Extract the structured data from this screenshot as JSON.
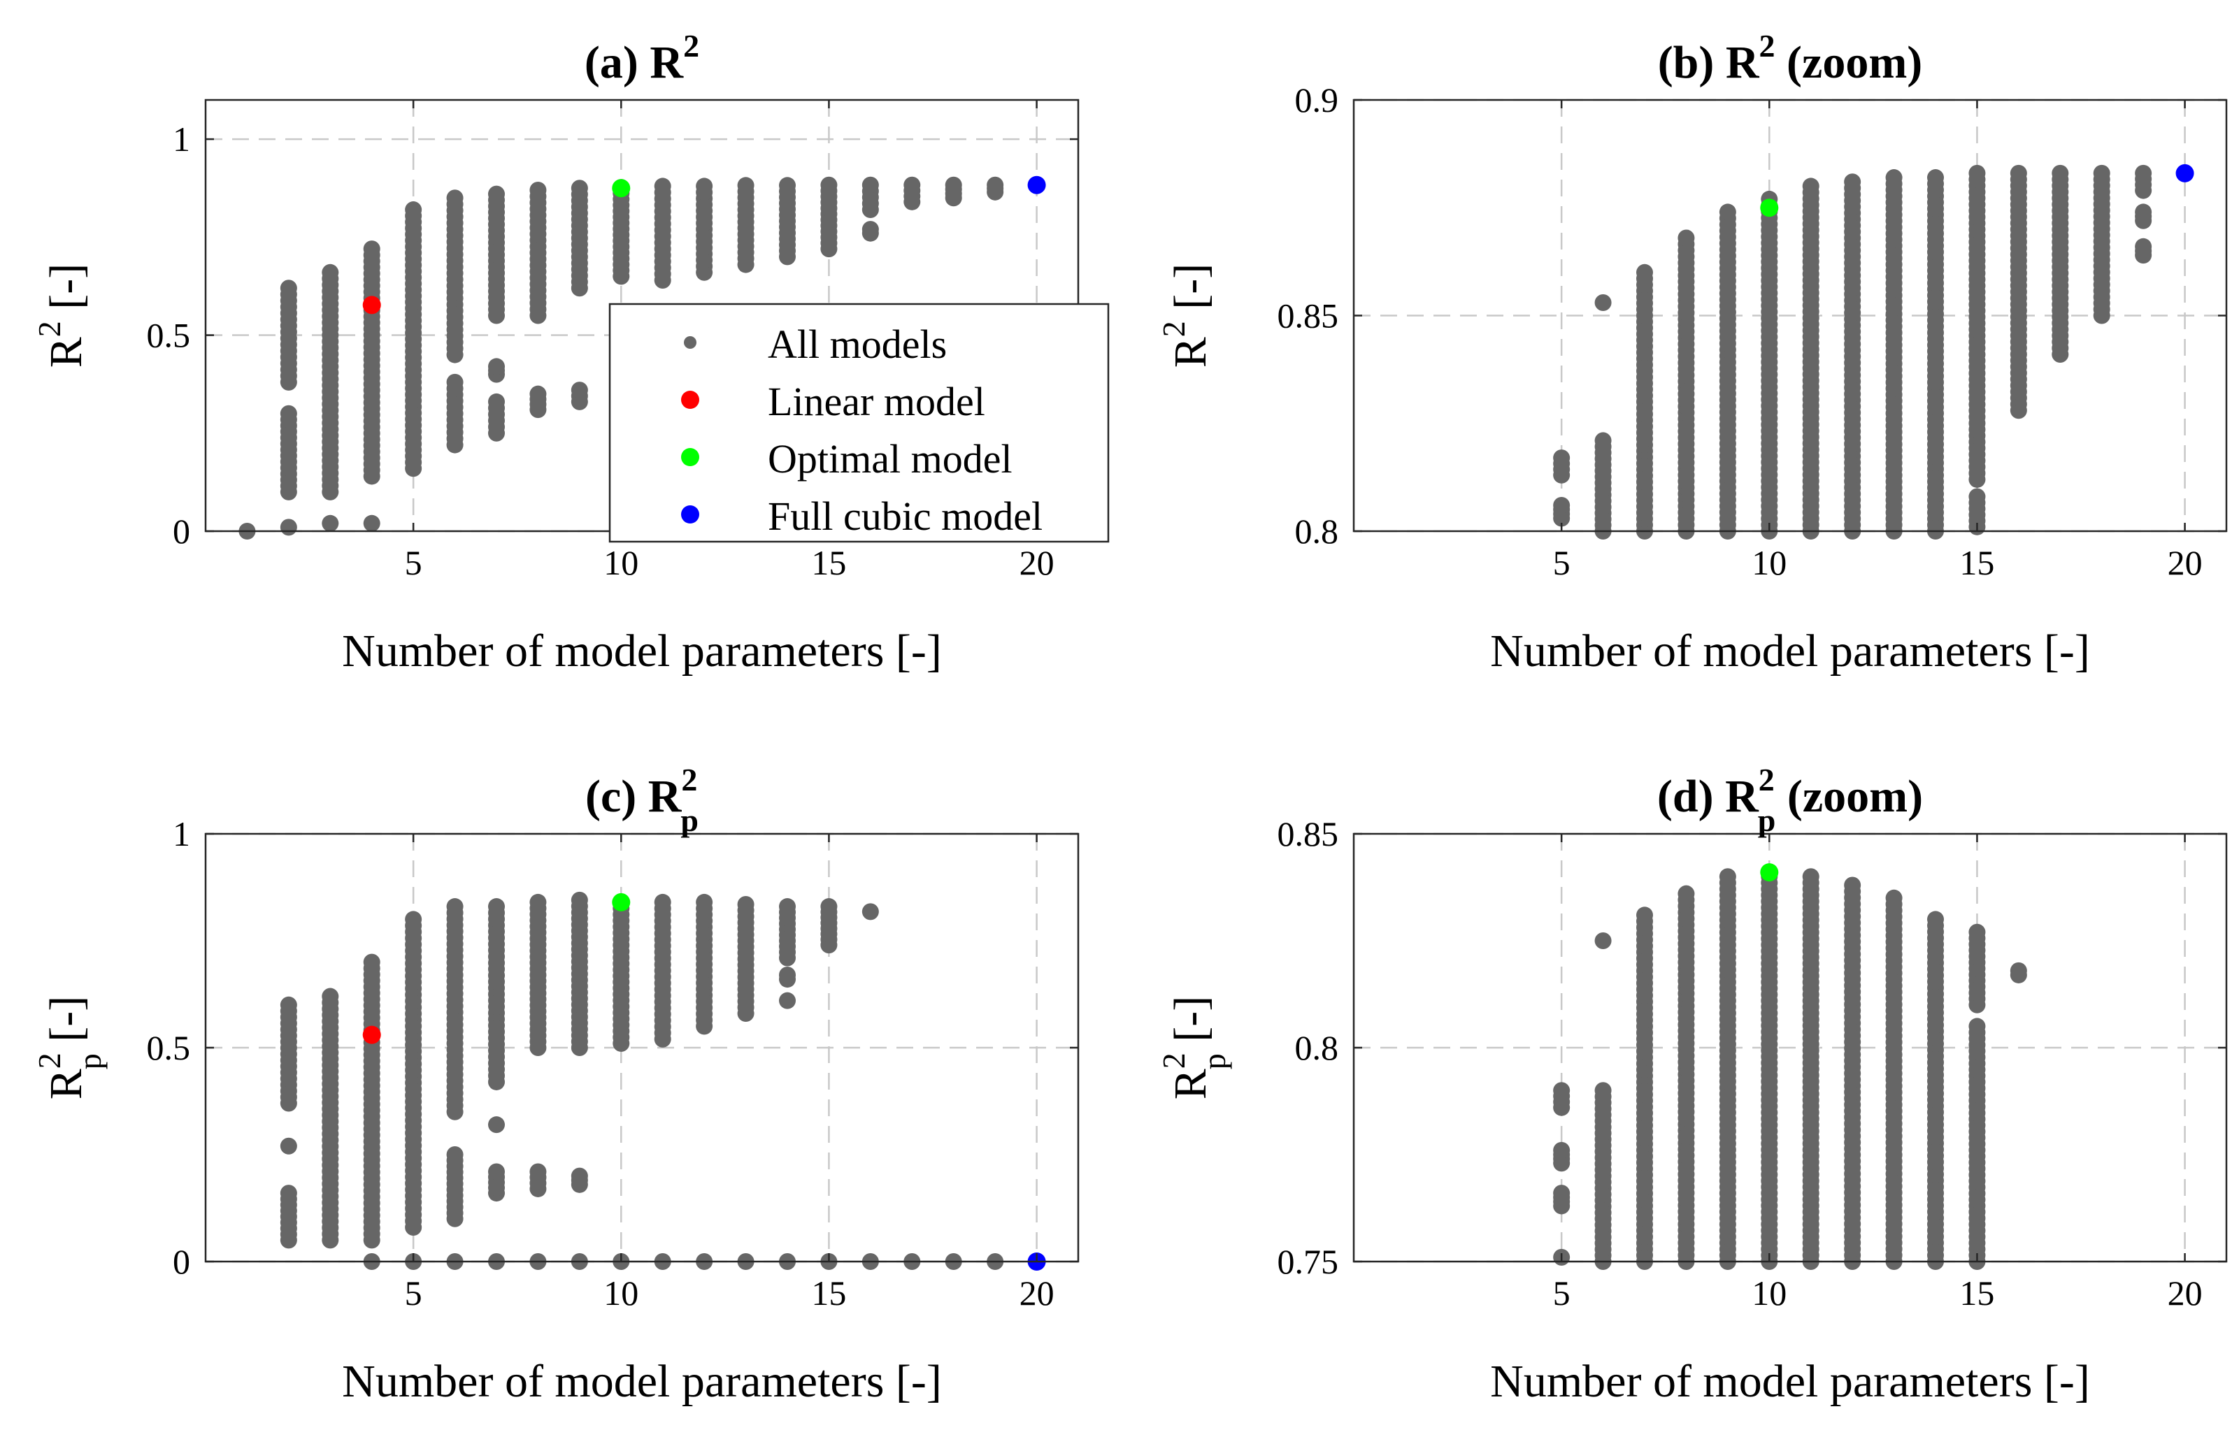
{
  "colors": {
    "all_models": "#666666",
    "linear_model": "#ff0000",
    "optimal_model": "#00ff00",
    "full_cubic_model": "#0000ff",
    "grid": "#c8c8c8"
  },
  "legend": {
    "entries": [
      {
        "label": "All models",
        "color": "#666666"
      },
      {
        "label": "Linear model",
        "color": "#ff0000"
      },
      {
        "label": "Optimal model",
        "color": "#00ff00"
      },
      {
        "label": "Full cubic model",
        "color": "#0000ff"
      }
    ],
    "placement": "inside panel (a), lower-right"
  },
  "chart_data": [
    {
      "id": "a",
      "type": "scatter",
      "title_prefix": "(a) ",
      "title_main": "R",
      "title_sup": "2",
      "title_sub": "",
      "title_suffix": "",
      "ylabel_main": "R",
      "ylabel_sup": "2",
      "ylabel_sub": "",
      "ylabel_suffix": " [-]",
      "xlabel": "Number of model parameters [-]",
      "xlim": [
        0,
        21
      ],
      "ylim": [
        0,
        1.1
      ],
      "xticks": [
        5,
        10,
        15,
        20
      ],
      "yticks": [
        0,
        0.5,
        1
      ],
      "ytick_labels": [
        "0",
        "0.5",
        "1"
      ],
      "grid": true,
      "all_models": [
        {
          "x": 1,
          "ranges": [
            [
              0.0,
              0.0
            ]
          ]
        },
        {
          "x": 2,
          "ranges": [
            [
              0.01,
              0.01
            ],
            [
              0.1,
              0.3
            ],
            [
              0.38,
              0.62
            ]
          ]
        },
        {
          "x": 3,
          "ranges": [
            [
              0.02,
              0.02
            ],
            [
              0.1,
              0.66
            ]
          ]
        },
        {
          "x": 4,
          "ranges": [
            [
              0.02,
              0.02
            ],
            [
              0.14,
              0.72
            ]
          ]
        },
        {
          "x": 5,
          "ranges": [
            [
              0.16,
              0.82
            ]
          ]
        },
        {
          "x": 6,
          "ranges": [
            [
              0.22,
              0.38
            ],
            [
              0.45,
              0.85
            ]
          ]
        },
        {
          "x": 7,
          "ranges": [
            [
              0.25,
              0.33
            ],
            [
              0.4,
              0.42
            ],
            [
              0.55,
              0.86
            ]
          ]
        },
        {
          "x": 8,
          "ranges": [
            [
              0.31,
              0.35
            ],
            [
              0.55,
              0.87
            ]
          ]
        },
        {
          "x": 9,
          "ranges": [
            [
              0.33,
              0.36
            ],
            [
              0.62,
              0.875
            ]
          ]
        },
        {
          "x": 10,
          "ranges": [
            [
              0.65,
              0.877
            ]
          ]
        },
        {
          "x": 11,
          "ranges": [
            [
              0.64,
              0.88
            ]
          ]
        },
        {
          "x": 12,
          "ranges": [
            [
              0.66,
              0.88
            ]
          ]
        },
        {
          "x": 13,
          "ranges": [
            [
              0.68,
              0.882
            ]
          ]
        },
        {
          "x": 14,
          "ranges": [
            [
              0.7,
              0.882
            ]
          ]
        },
        {
          "x": 15,
          "ranges": [
            [
              0.72,
              0.883
            ]
          ]
        },
        {
          "x": 16,
          "ranges": [
            [
              0.76,
              0.77
            ],
            [
              0.82,
              0.883
            ]
          ]
        },
        {
          "x": 17,
          "ranges": [
            [
              0.84,
              0.883
            ]
          ]
        },
        {
          "x": 18,
          "ranges": [
            [
              0.85,
              0.883
            ]
          ]
        },
        {
          "x": 19,
          "ranges": [
            [
              0.865,
              0.883
            ]
          ]
        }
      ],
      "highlights": [
        {
          "model": "linear",
          "x": 4,
          "y": 0.577,
          "color": "#ff0000"
        },
        {
          "model": "optimal",
          "x": 10,
          "y": 0.875,
          "color": "#00ff00"
        },
        {
          "model": "full_cubic",
          "x": 20,
          "y": 0.883,
          "color": "#0000ff"
        }
      ]
    },
    {
      "id": "b",
      "type": "scatter",
      "title_prefix": "(b) ",
      "title_main": "R",
      "title_sup": "2",
      "title_sub": "",
      "title_suffix": " (zoom)",
      "ylabel_main": "R",
      "ylabel_sup": "2",
      "ylabel_sub": "",
      "ylabel_suffix": " [-]",
      "xlabel": "Number of model parameters [-]",
      "xlim": [
        0,
        21
      ],
      "ylim": [
        0.8,
        0.9
      ],
      "xticks": [
        5,
        10,
        15,
        20
      ],
      "yticks": [
        0.8,
        0.85,
        0.9
      ],
      "ytick_labels": [
        "0.8",
        "0.85",
        "0.9"
      ],
      "grid": true,
      "all_models": [
        {
          "x": 5,
          "ranges": [
            [
              0.803,
              0.806
            ],
            [
              0.813,
              0.817
            ]
          ]
        },
        {
          "x": 6,
          "ranges": [
            [
              0.8,
              0.821
            ],
            [
              0.853,
              0.853
            ]
          ]
        },
        {
          "x": 7,
          "ranges": [
            [
              0.8,
              0.86
            ]
          ]
        },
        {
          "x": 8,
          "ranges": [
            [
              0.8,
              0.868
            ]
          ]
        },
        {
          "x": 9,
          "ranges": [
            [
              0.8,
              0.874
            ]
          ]
        },
        {
          "x": 10,
          "ranges": [
            [
              0.8,
              0.877
            ]
          ]
        },
        {
          "x": 11,
          "ranges": [
            [
              0.8,
              0.88
            ]
          ]
        },
        {
          "x": 12,
          "ranges": [
            [
              0.8,
              0.881
            ]
          ]
        },
        {
          "x": 13,
          "ranges": [
            [
              0.8,
              0.882
            ]
          ]
        },
        {
          "x": 14,
          "ranges": [
            [
              0.8,
              0.882
            ]
          ]
        },
        {
          "x": 15,
          "ranges": [
            [
              0.801,
              0.808
            ],
            [
              0.812,
              0.883
            ]
          ]
        },
        {
          "x": 16,
          "ranges": [
            [
              0.828,
              0.883
            ]
          ]
        },
        {
          "x": 17,
          "ranges": [
            [
              0.841,
              0.883
            ]
          ]
        },
        {
          "x": 18,
          "ranges": [
            [
              0.85,
              0.883
            ]
          ]
        },
        {
          "x": 19,
          "ranges": [
            [
              0.864,
              0.866
            ],
            [
              0.872,
              0.874
            ],
            [
              0.879,
              0.883
            ]
          ]
        }
      ],
      "highlights": [
        {
          "model": "optimal",
          "x": 10,
          "y": 0.875,
          "color": "#00ff00"
        },
        {
          "model": "full_cubic",
          "x": 20,
          "y": 0.883,
          "color": "#0000ff"
        }
      ]
    },
    {
      "id": "c",
      "type": "scatter",
      "title_prefix": "(c) ",
      "title_main": "R",
      "title_sup": "2",
      "title_sub": "p",
      "title_suffix": "",
      "ylabel_main": "R",
      "ylabel_sup": "2",
      "ylabel_sub": "p",
      "ylabel_suffix": " [-]",
      "xlabel": "Number of model parameters [-]",
      "xlim": [
        0,
        21
      ],
      "ylim": [
        0,
        1
      ],
      "xticks": [
        5,
        10,
        15,
        20
      ],
      "yticks": [
        0,
        0.5,
        1
      ],
      "ytick_labels": [
        "0",
        "0.5",
        "1"
      ],
      "grid": true,
      "all_models": [
        {
          "x": 2,
          "ranges": [
            [
              0.05,
              0.16
            ],
            [
              0.27,
              0.27
            ],
            [
              0.37,
              0.6
            ]
          ]
        },
        {
          "x": 3,
          "ranges": [
            [
              0.05,
              0.62
            ]
          ]
        },
        {
          "x": 4,
          "ranges": [
            [
              0.0,
              0.0
            ],
            [
              0.05,
              0.7
            ]
          ]
        },
        {
          "x": 5,
          "ranges": [
            [
              0.0,
              0.0
            ],
            [
              0.08,
              0.8
            ]
          ]
        },
        {
          "x": 6,
          "ranges": [
            [
              0.0,
              0.0
            ],
            [
              0.1,
              0.25
            ],
            [
              0.35,
              0.83
            ]
          ]
        },
        {
          "x": 7,
          "ranges": [
            [
              0.0,
              0.0
            ],
            [
              0.16,
              0.21
            ],
            [
              0.32,
              0.32
            ],
            [
              0.42,
              0.83
            ]
          ]
        },
        {
          "x": 8,
          "ranges": [
            [
              0.0,
              0.0
            ],
            [
              0.17,
              0.21
            ],
            [
              0.5,
              0.84
            ]
          ]
        },
        {
          "x": 9,
          "ranges": [
            [
              0.0,
              0.0
            ],
            [
              0.18,
              0.2
            ],
            [
              0.5,
              0.845
            ]
          ]
        },
        {
          "x": 10,
          "ranges": [
            [
              0.0,
              0.0
            ],
            [
              0.51,
              0.84
            ]
          ]
        },
        {
          "x": 11,
          "ranges": [
            [
              0.0,
              0.0
            ],
            [
              0.52,
              0.84
            ]
          ]
        },
        {
          "x": 12,
          "ranges": [
            [
              0.0,
              0.0
            ],
            [
              0.55,
              0.84
            ]
          ]
        },
        {
          "x": 13,
          "ranges": [
            [
              0.0,
              0.0
            ],
            [
              0.58,
              0.835
            ]
          ]
        },
        {
          "x": 14,
          "ranges": [
            [
              0.0,
              0.0
            ],
            [
              0.61,
              0.61
            ],
            [
              0.66,
              0.67
            ],
            [
              0.71,
              0.83
            ]
          ]
        },
        {
          "x": 15,
          "ranges": [
            [
              0.0,
              0.0
            ],
            [
              0.74,
              0.83
            ]
          ]
        },
        {
          "x": 16,
          "ranges": [
            [
              0.0,
              0.0
            ],
            [
              0.818,
              0.818
            ]
          ]
        },
        {
          "x": 17,
          "ranges": [
            [
              0.0,
              0.0
            ]
          ]
        },
        {
          "x": 18,
          "ranges": [
            [
              0.0,
              0.0
            ]
          ]
        },
        {
          "x": 19,
          "ranges": [
            [
              0.0,
              0.0
            ]
          ]
        }
      ],
      "highlights": [
        {
          "model": "linear",
          "x": 4,
          "y": 0.53,
          "color": "#ff0000"
        },
        {
          "model": "optimal",
          "x": 10,
          "y": 0.84,
          "color": "#00ff00"
        },
        {
          "model": "full_cubic",
          "x": 20,
          "y": 0.0,
          "color": "#0000ff"
        }
      ]
    },
    {
      "id": "d",
      "type": "scatter",
      "title_prefix": "(d) ",
      "title_main": "R",
      "title_sup": "2",
      "title_sub": "p",
      "title_suffix": " (zoom)",
      "ylabel_main": "R",
      "ylabel_sup": "2",
      "ylabel_sub": "p",
      "ylabel_suffix": " [-]",
      "xlabel": "Number of model parameters [-]",
      "xlim": [
        0,
        21
      ],
      "ylim": [
        0.75,
        0.85
      ],
      "xticks": [
        5,
        10,
        15,
        20
      ],
      "yticks": [
        0.75,
        0.8,
        0.85
      ],
      "ytick_labels": [
        "0.75",
        "0.8",
        "0.85"
      ],
      "grid": true,
      "all_models": [
        {
          "x": 5,
          "ranges": [
            [
              0.751,
              0.751
            ],
            [
              0.763,
              0.766
            ],
            [
              0.773,
              0.776
            ],
            [
              0.786,
              0.79
            ]
          ]
        },
        {
          "x": 6,
          "ranges": [
            [
              0.75,
              0.79
            ],
            [
              0.825,
              0.825
            ]
          ]
        },
        {
          "x": 7,
          "ranges": [
            [
              0.75,
              0.831
            ]
          ]
        },
        {
          "x": 8,
          "ranges": [
            [
              0.75,
              0.836
            ]
          ]
        },
        {
          "x": 9,
          "ranges": [
            [
              0.75,
              0.84
            ]
          ]
        },
        {
          "x": 10,
          "ranges": [
            [
              0.75,
              0.84
            ]
          ]
        },
        {
          "x": 11,
          "ranges": [
            [
              0.75,
              0.84
            ]
          ]
        },
        {
          "x": 12,
          "ranges": [
            [
              0.75,
              0.838
            ]
          ]
        },
        {
          "x": 13,
          "ranges": [
            [
              0.75,
              0.835
            ]
          ]
        },
        {
          "x": 14,
          "ranges": [
            [
              0.75,
              0.83
            ]
          ]
        },
        {
          "x": 15,
          "ranges": [
            [
              0.75,
              0.805
            ],
            [
              0.81,
              0.827
            ]
          ]
        },
        {
          "x": 16,
          "ranges": [
            [
              0.817,
              0.818
            ]
          ]
        }
      ],
      "highlights": [
        {
          "model": "optimal",
          "x": 10,
          "y": 0.841,
          "color": "#00ff00"
        }
      ]
    }
  ]
}
